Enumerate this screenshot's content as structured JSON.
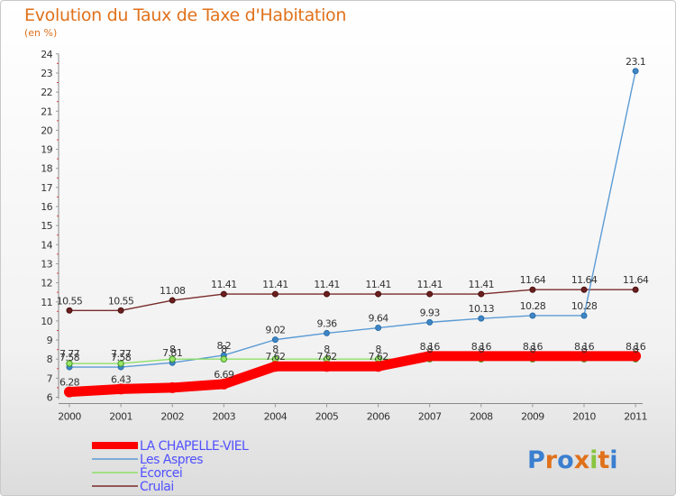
{
  "chart_data": {
    "type": "line",
    "title": "Evolution du Taux de Taxe d'Habitation",
    "ylabel": "(en %)",
    "xlabel": "",
    "ylim": [
      6,
      24
    ],
    "yticks": [
      "6",
      "7",
      "8",
      "9",
      "10",
      "11",
      "12",
      "13",
      "14",
      "15",
      "16",
      "17",
      "18",
      "19",
      "20",
      "21",
      "22",
      "23",
      "24"
    ],
    "x": [
      "2000",
      "2001",
      "2002",
      "2003",
      "2004",
      "2005",
      "2006",
      "2007",
      "2008",
      "2009",
      "2010",
      "2011"
    ],
    "series": [
      {
        "name": "LA CHAPELLE-VIEL",
        "color": "#ff0000",
        "values": [
          6.28,
          6.43,
          6.5,
          6.69,
          7.62,
          7.62,
          7.62,
          8.16,
          8.16,
          8.16,
          8.16,
          8.16
        ],
        "labels": [
          "6.28",
          "6.43",
          "",
          "6.69",
          "7.62",
          "7.62",
          "7.62",
          "8.16",
          "8.16",
          "8.16",
          "8.16",
          "8.16"
        ]
      },
      {
        "name": "Les Aspres",
        "color": "#5b9bd5",
        "values": [
          7.58,
          7.58,
          7.81,
          8.2,
          9.02,
          9.36,
          9.64,
          9.93,
          10.13,
          10.28,
          10.28,
          23.1
        ],
        "labels": [
          "7.58",
          "7.58",
          "7.81",
          "8.2",
          "9.02",
          "9.36",
          "9.64",
          "9.93",
          "10.13",
          "10.28",
          "10.28",
          "23.1"
        ]
      },
      {
        "name": "Écorcei",
        "color": "#8fe06a",
        "values": [
          7.77,
          7.77,
          8,
          8,
          8,
          8,
          8,
          8,
          8,
          8,
          8,
          8
        ],
        "labels": [
          "7.77",
          "7.77",
          "8",
          "8",
          "8",
          "8",
          "8",
          "8",
          "8",
          "8",
          "8",
          "8"
        ]
      },
      {
        "name": "Crulai",
        "color": "#7a2b2b",
        "values": [
          10.55,
          10.55,
          11.08,
          11.41,
          11.41,
          11.41,
          11.41,
          11.41,
          11.41,
          11.64,
          11.64,
          11.64
        ],
        "labels": [
          "10.55",
          "10.55",
          "11.08",
          "11.41",
          "11.41",
          "11.41",
          "11.41",
          "11.41",
          "11.41",
          "11.64",
          "11.64",
          "11.64"
        ]
      }
    ],
    "legend_position": "bottom-left",
    "grid": false
  },
  "branding": {
    "logo_text": "Proxiti"
  }
}
